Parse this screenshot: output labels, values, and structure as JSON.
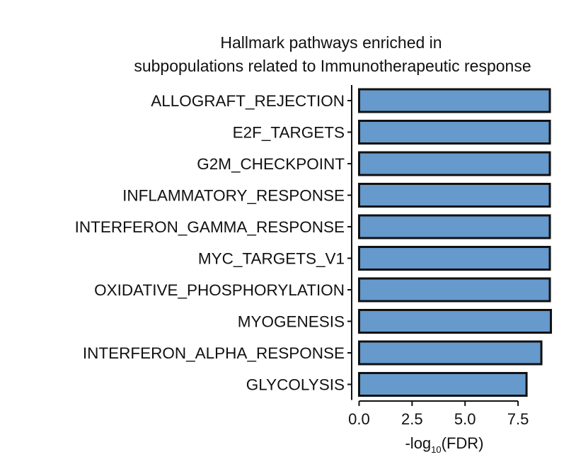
{
  "chart_data": {
    "type": "bar",
    "orientation": "horizontal",
    "title_lines": [
      "Hallmark pathways enriched in",
      "subpopulations related to Immunotherapeutic response"
    ],
    "categories": [
      "ALLOGRAFT_REJECTION",
      "E2F_TARGETS",
      "G2M_CHECKPOINT",
      "INFLAMMATORY_RESPONSE",
      "INTERFERON_GAMMA_RESPONSE",
      "MYC_TARGETS_V1",
      "OXIDATIVE_PHOSPHORYLATION",
      "MYOGENESIS",
      "INTERFERON_ALPHA_RESPONSE",
      "GLYCOLYSIS"
    ],
    "values": [
      9.0,
      9.0,
      9.0,
      9.0,
      9.0,
      9.0,
      9.0,
      9.05,
      8.6,
      7.9
    ],
    "xlabel": {
      "prefix": "-log",
      "subscript": "10",
      "suffix": "(FDR)"
    },
    "xticks": [
      "0.0",
      "2.5",
      "5.0",
      "7.5"
    ],
    "xlim": [
      -0.35,
      9.6
    ],
    "bar_color": "#6699cc",
    "bar_edge_color": "#111111",
    "grid": false,
    "legend": "none"
  }
}
